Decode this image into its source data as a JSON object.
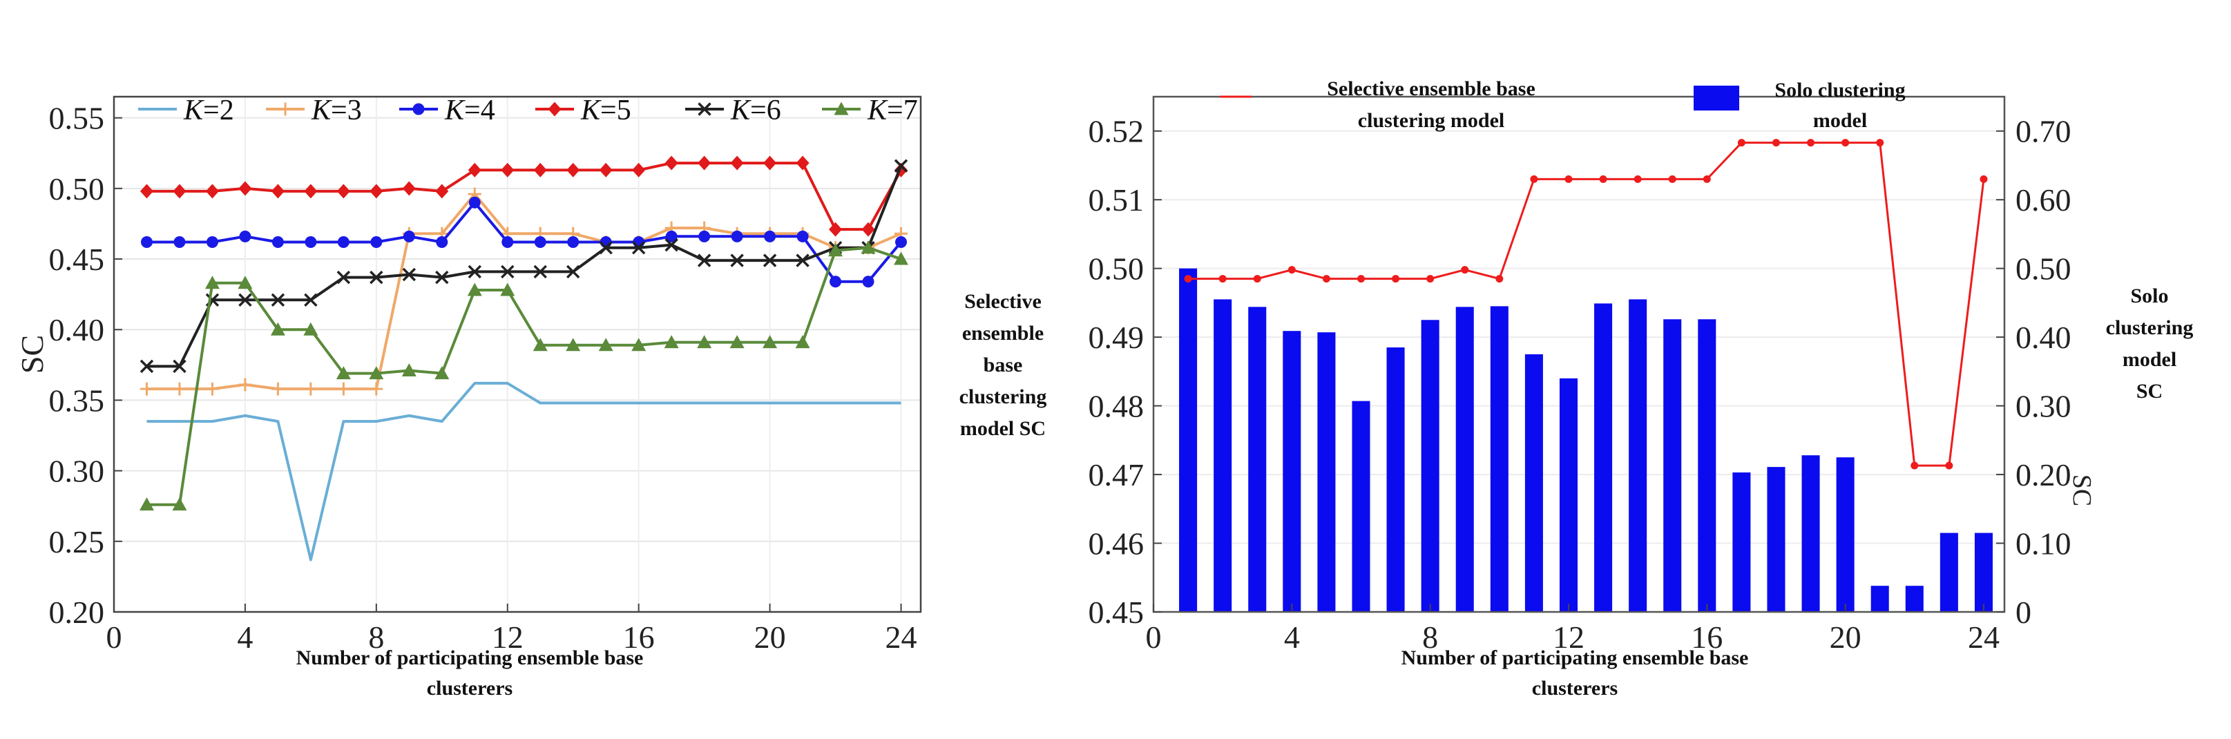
{
  "chart_data": [
    {
      "type": "line",
      "title": "",
      "xlabel_lines": [
        "Number of participating ensemble base",
        "clusterers"
      ],
      "ylabel": "SC",
      "xlim": [
        0,
        24.6
      ],
      "ylim": [
        0.2,
        0.565
      ],
      "xticks": [
        0,
        4,
        8,
        12,
        16,
        20,
        24
      ],
      "yticks": [
        0.2,
        0.25,
        0.3,
        0.35,
        0.4,
        0.45,
        0.5,
        0.55
      ],
      "ytick_labels": [
        "0.20",
        "0.25",
        "0.30",
        "0.35",
        "0.40",
        "0.45",
        "0.50",
        "0.55"
      ],
      "legend_position": "top",
      "x": [
        1,
        2,
        3,
        4,
        5,
        6,
        7,
        8,
        9,
        10,
        11,
        12,
        13,
        14,
        15,
        16,
        17,
        18,
        19,
        20,
        21,
        22,
        23,
        24
      ],
      "series": [
        {
          "name": "K=2",
          "k": "2",
          "color": "#6aaed6",
          "marker": "none",
          "values": [
            0.335,
            0.335,
            0.335,
            0.339,
            0.335,
            0.237,
            0.335,
            0.335,
            0.339,
            0.335,
            0.362,
            0.362,
            0.348,
            0.348,
            0.348,
            0.348,
            0.348,
            0.348,
            0.348,
            0.348,
            0.348,
            0.348,
            0.348,
            0.348
          ]
        },
        {
          "name": "K=3",
          "k": "3",
          "color": "#f0a868",
          "marker": "plus",
          "values": [
            0.358,
            0.358,
            0.358,
            0.361,
            0.358,
            0.358,
            0.358,
            0.358,
            0.468,
            0.468,
            0.496,
            0.468,
            0.468,
            0.468,
            0.462,
            0.462,
            0.472,
            0.472,
            0.468,
            0.468,
            0.468,
            0.458,
            0.458,
            0.468
          ]
        },
        {
          "name": "K=4",
          "k": "4",
          "color": "#1a1ae6",
          "marker": "circle",
          "values": [
            0.462,
            0.462,
            0.462,
            0.466,
            0.462,
            0.462,
            0.462,
            0.462,
            0.466,
            0.462,
            0.49,
            0.462,
            0.462,
            0.462,
            0.462,
            0.462,
            0.466,
            0.466,
            0.466,
            0.466,
            0.466,
            0.434,
            0.434,
            0.462
          ]
        },
        {
          "name": "K=5",
          "k": "5",
          "color": "#e01a1a",
          "marker": "diamond",
          "values": [
            0.498,
            0.498,
            0.498,
            0.5,
            0.498,
            0.498,
            0.498,
            0.498,
            0.5,
            0.498,
            0.513,
            0.513,
            0.513,
            0.513,
            0.513,
            0.513,
            0.518,
            0.518,
            0.518,
            0.518,
            0.518,
            0.471,
            0.471,
            0.513
          ]
        },
        {
          "name": "K=6",
          "k": "6",
          "color": "#222222",
          "marker": "x",
          "values": [
            0.374,
            0.374,
            0.421,
            0.421,
            0.421,
            0.421,
            0.437,
            0.437,
            0.439,
            0.437,
            0.441,
            0.441,
            0.441,
            0.441,
            0.458,
            0.458,
            0.46,
            0.449,
            0.449,
            0.449,
            0.449,
            0.458,
            0.458,
            0.516
          ]
        },
        {
          "name": "K=7",
          "k": "7",
          "color": "#5a8a3a",
          "marker": "triangle",
          "values": [
            0.276,
            0.276,
            0.433,
            0.433,
            0.4,
            0.4,
            0.369,
            0.369,
            0.371,
            0.369,
            0.428,
            0.428,
            0.389,
            0.389,
            0.389,
            0.389,
            0.391,
            0.391,
            0.391,
            0.391,
            0.391,
            0.456,
            0.458,
            0.45
          ]
        }
      ]
    },
    {
      "type": "bar+line",
      "title": "",
      "xlabel_lines": [
        "Number of participating ensemble base",
        "clusterers"
      ],
      "ylabel_left_lines": [
        "Selective",
        "ensemble",
        "base",
        "clustering",
        "model SC"
      ],
      "ylabel_right_lines": [
        "Solo",
        "clustering",
        "model",
        "SC"
      ],
      "right_axis_fragment": "SC",
      "xlim": [
        0,
        24.6
      ],
      "ylim_left": [
        0.45,
        0.525
      ],
      "ylim_right": [
        0,
        0.75
      ],
      "xticks": [
        0,
        4,
        8,
        12,
        16,
        20,
        24
      ],
      "yticks_left": [
        0.45,
        0.46,
        0.47,
        0.48,
        0.49,
        0.5,
        0.51,
        0.52
      ],
      "ytick_labels_left": [
        "0.45",
        "0.46",
        "0.47",
        "0.48",
        "0.49",
        "0.50",
        "0.51",
        "0.52"
      ],
      "yticks_right": [
        0,
        0.1,
        0.2,
        0.3,
        0.4,
        0.5,
        0.6,
        0.7
      ],
      "ytick_labels_right": [
        "0",
        "0.10",
        "0.20",
        "0.30",
        "0.40",
        "0.50",
        "0.60",
        "0.70"
      ],
      "x": [
        1,
        2,
        3,
        4,
        5,
        6,
        7,
        8,
        9,
        10,
        11,
        12,
        13,
        14,
        15,
        16,
        17,
        18,
        19,
        20,
        21,
        22,
        23,
        24
      ],
      "line": {
        "legend_lines": [
          "Selective ensemble base",
          "clustering model"
        ],
        "color": "#ee1c1c",
        "axis": "left",
        "values": [
          0.4985,
          0.4985,
          0.4985,
          0.4998,
          0.4985,
          0.4985,
          0.4985,
          0.4985,
          0.4998,
          0.4985,
          0.513,
          0.513,
          0.513,
          0.513,
          0.513,
          0.513,
          0.5183,
          0.5183,
          0.5183,
          0.5183,
          0.5183,
          0.4713,
          0.4713,
          0.513
        ]
      },
      "bars": {
        "legend_lines": [
          "Solo clustering",
          "model"
        ],
        "color": "#0b0bf0",
        "axis": "right",
        "values": [
          0.5,
          0.455,
          0.444,
          0.409,
          0.407,
          0.307,
          0.385,
          0.425,
          0.444,
          0.445,
          0.375,
          0.34,
          0.449,
          0.455,
          0.426,
          0.426,
          0.203,
          0.211,
          0.228,
          0.225,
          0.038,
          0.038,
          0.115,
          0.115
        ]
      }
    }
  ]
}
